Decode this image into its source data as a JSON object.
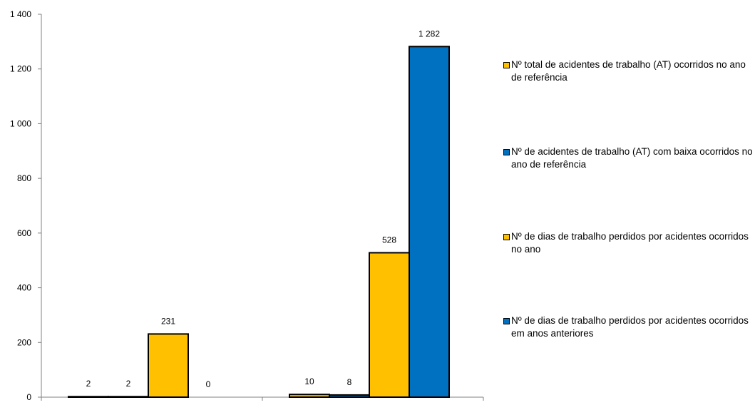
{
  "chart_data": {
    "type": "bar",
    "categories": [
      "",
      ""
    ],
    "series": [
      {
        "name": "Nº total de acidentes de trabalho (AT) ocorridos no ano de referência",
        "color": "#FFC000",
        "values": [
          2,
          10
        ]
      },
      {
        "name": "Nº de acidentes de trabalho (AT) com baixa ocorridos no ano de referência",
        "color": "#0070C0",
        "values": [
          2,
          8
        ]
      },
      {
        "name": "Nº de dias de trabalho perdidos por acidentes ocorridos no ano",
        "color": "#FFC000",
        "values": [
          231,
          528
        ]
      },
      {
        "name": "Nº de dias de trabalho perdidos por acidentes ocorridos em anos anteriores",
        "color": "#0070C0",
        "values": [
          0,
          1282
        ]
      }
    ],
    "data_labels": [
      [
        "2",
        "10"
      ],
      [
        "2",
        "8"
      ],
      [
        "231",
        "528"
      ],
      [
        "0",
        "1 282"
      ]
    ],
    "title": "",
    "xlabel": "",
    "ylabel": "",
    "ylim": [
      0,
      1400
    ],
    "y_ticks": [
      0,
      200,
      400,
      600,
      800,
      1000,
      1200,
      1400
    ],
    "y_tick_labels": [
      "0",
      "200",
      "400",
      "600",
      "800",
      "1 000",
      "1 200",
      "1 400"
    ],
    "grid": false,
    "legend_position": "right"
  }
}
